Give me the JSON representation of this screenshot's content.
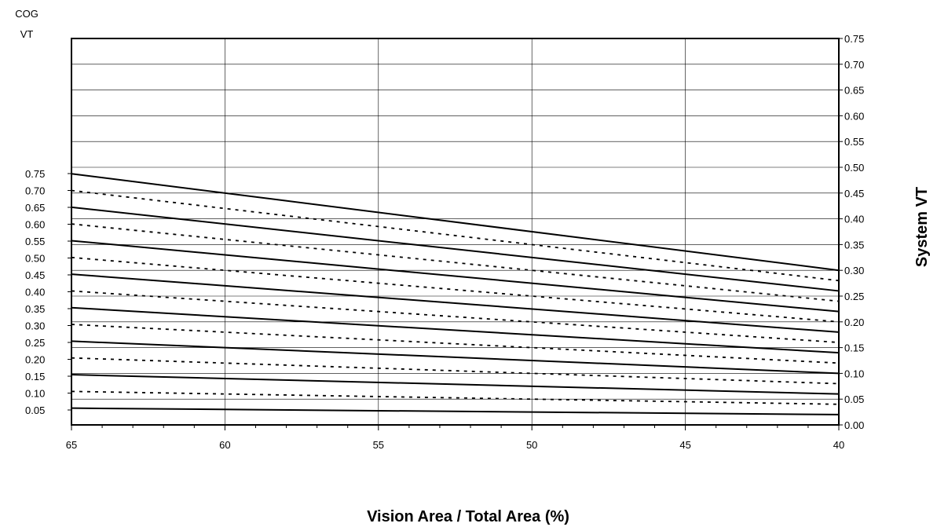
{
  "chart_data": {
    "type": "line",
    "x_direction": "descending",
    "xlabel": "Vision Area / Total Area (%)",
    "ylabel_left_line1": "COG",
    "ylabel_left_line2": "VT",
    "ylabel_right": "System VT",
    "xlim": [
      65,
      40
    ],
    "ylim_right": [
      0.0,
      0.75
    ],
    "x_ticks": [
      "65",
      "60",
      "55",
      "50",
      "45",
      "40"
    ],
    "y_left_ticks": [
      "0.05",
      "0.10",
      "0.15",
      "0.20",
      "0.25",
      "0.30",
      "0.35",
      "0.40",
      "0.45",
      "0.50",
      "0.55",
      "0.60",
      "0.65",
      "0.70",
      "0.75"
    ],
    "y_right_ticks": [
      "0.00",
      "0.05",
      "0.10",
      "0.15",
      "0.20",
      "0.25",
      "0.30",
      "0.35",
      "0.40",
      "0.45",
      "0.50",
      "0.55",
      "0.60",
      "0.65",
      "0.70",
      "0.75"
    ],
    "grid": true,
    "series": [
      {
        "cog_vt": 0.05,
        "style": "solid",
        "x": [
          65,
          40
        ],
        "y": [
          0.0325,
          0.02
        ]
      },
      {
        "cog_vt": 0.1,
        "style": "dashed",
        "x": [
          65,
          40
        ],
        "y": [
          0.065,
          0.04
        ]
      },
      {
        "cog_vt": 0.15,
        "style": "solid",
        "x": [
          65,
          40
        ],
        "y": [
          0.0975,
          0.06
        ]
      },
      {
        "cog_vt": 0.2,
        "style": "dashed",
        "x": [
          65,
          40
        ],
        "y": [
          0.13,
          0.08
        ]
      },
      {
        "cog_vt": 0.25,
        "style": "solid",
        "x": [
          65,
          40
        ],
        "y": [
          0.1625,
          0.1
        ]
      },
      {
        "cog_vt": 0.3,
        "style": "dashed",
        "x": [
          65,
          40
        ],
        "y": [
          0.195,
          0.12
        ]
      },
      {
        "cog_vt": 0.35,
        "style": "solid",
        "x": [
          65,
          40
        ],
        "y": [
          0.2275,
          0.14
        ]
      },
      {
        "cog_vt": 0.4,
        "style": "dashed",
        "x": [
          65,
          40
        ],
        "y": [
          0.26,
          0.16
        ]
      },
      {
        "cog_vt": 0.45,
        "style": "solid",
        "x": [
          65,
          40
        ],
        "y": [
          0.2925,
          0.18
        ]
      },
      {
        "cog_vt": 0.5,
        "style": "dashed",
        "x": [
          65,
          40
        ],
        "y": [
          0.325,
          0.2
        ]
      },
      {
        "cog_vt": 0.55,
        "style": "solid",
        "x": [
          65,
          40
        ],
        "y": [
          0.3575,
          0.22
        ]
      },
      {
        "cog_vt": 0.6,
        "style": "dashed",
        "x": [
          65,
          40
        ],
        "y": [
          0.39,
          0.24
        ]
      },
      {
        "cog_vt": 0.65,
        "style": "solid",
        "x": [
          65,
          40
        ],
        "y": [
          0.4225,
          0.26
        ]
      },
      {
        "cog_vt": 0.7,
        "style": "dashed",
        "x": [
          65,
          40
        ],
        "y": [
          0.455,
          0.28
        ]
      },
      {
        "cog_vt": 0.75,
        "style": "solid",
        "x": [
          65,
          40
        ],
        "y": [
          0.4875,
          0.3
        ]
      }
    ]
  }
}
